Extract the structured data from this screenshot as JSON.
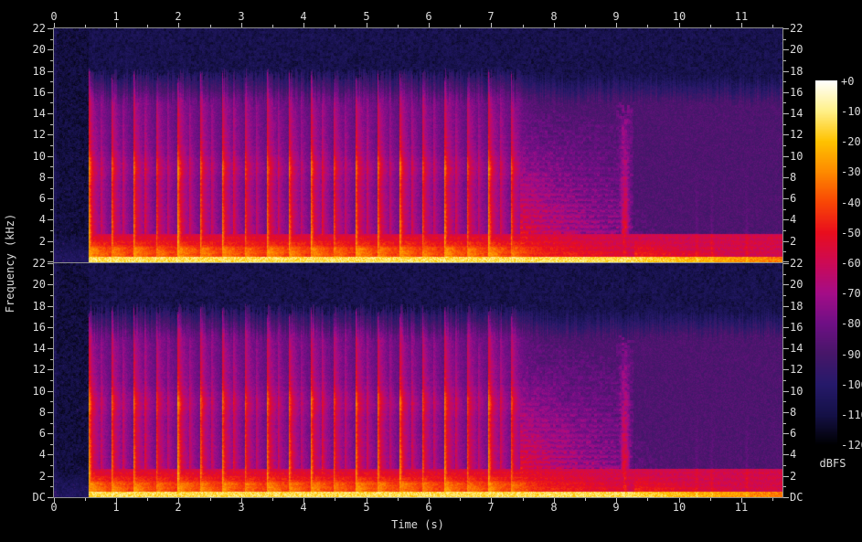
{
  "figure": {
    "xlabel": "Time (s)",
    "ylabel": "Frequency (kHz)",
    "colorbar": {
      "label": "dBFS",
      "tick_labels": [
        "+0",
        "-10",
        "-20",
        "-30",
        "-40",
        "-50",
        "-60",
        "-70",
        "-80",
        "-90",
        "-100",
        "-110",
        "-120"
      ]
    },
    "axes": {
      "time_tick_labels": [
        "0",
        "1",
        "2",
        "3",
        "4",
        "5",
        "6",
        "7",
        "8",
        "9",
        "10",
        "11"
      ],
      "freq_tick_labels": [
        "22",
        "20",
        "18",
        "16",
        "14",
        "12",
        "10",
        "8",
        "6",
        "4",
        "2"
      ],
      "dc_label": "DC"
    }
  },
  "chart_data": {
    "type": "heatmap",
    "subtype": "audio-spectrogram",
    "channels": 2,
    "x": {
      "label": "Time (s)",
      "min_s": 0,
      "max_s": 11.65,
      "major_step_s": 1,
      "minor_step_s": 0.5
    },
    "y": {
      "label": "Frequency (kHz)",
      "min_khz": 0,
      "max_khz": 22,
      "major_step_khz": 2,
      "minor_step_khz": 1
    },
    "z": {
      "label": "dBFS",
      "min_db": -120,
      "max_db": 0
    },
    "palette_stops": [
      [
        0.0,
        "#000000"
      ],
      [
        0.083,
        "#151147"
      ],
      [
        0.167,
        "#261a6b"
      ],
      [
        0.25,
        "#471769"
      ],
      [
        0.333,
        "#6f1085"
      ],
      [
        0.417,
        "#a50d88"
      ],
      [
        0.5,
        "#cd0a56"
      ],
      [
        0.583,
        "#e90e1e"
      ],
      [
        0.667,
        "#f94806"
      ],
      [
        0.75,
        "#fe8b00"
      ],
      [
        0.833,
        "#ffc200"
      ],
      [
        0.917,
        "#fff189"
      ],
      [
        1.0,
        "#ffffff"
      ]
    ],
    "content": {
      "silence_end_s": 0.55,
      "bandwidth_cutoff_khz": 16.5,
      "noise_floor_db": -104,
      "hot_band": {
        "center_khz": 8.9,
        "width_khz": 1.2,
        "boost_db": 14
      },
      "low_band": {
        "top_khz": 0.5,
        "level_db": -14
      },
      "note_onsets": [
        [
          0.56,
          1.0
        ],
        [
          0.74,
          0.55
        ],
        [
          0.92,
          0.9
        ],
        [
          1.1,
          0.5
        ],
        [
          1.27,
          0.95
        ],
        [
          1.45,
          0.6
        ],
        [
          1.63,
          0.85
        ],
        [
          1.81,
          0.5
        ],
        [
          1.98,
          1.0
        ],
        [
          2.16,
          0.55
        ],
        [
          2.34,
          0.9
        ],
        [
          2.52,
          0.5
        ],
        [
          2.69,
          0.95
        ],
        [
          2.87,
          0.6
        ],
        [
          3.05,
          0.85
        ],
        [
          3.23,
          0.5
        ],
        [
          3.4,
          1.0
        ],
        [
          3.58,
          0.55
        ],
        [
          3.76,
          0.9
        ],
        [
          3.94,
          0.5
        ],
        [
          4.11,
          0.95
        ],
        [
          4.29,
          0.6
        ],
        [
          4.47,
          0.85
        ],
        [
          4.65,
          0.5
        ],
        [
          4.82,
          1.0
        ],
        [
          5.0,
          0.55
        ],
        [
          5.18,
          0.9
        ],
        [
          5.36,
          0.5
        ],
        [
          5.53,
          0.95
        ],
        [
          5.71,
          0.6
        ],
        [
          5.89,
          0.85
        ],
        [
          6.07,
          0.5
        ],
        [
          6.24,
          1.0
        ],
        [
          6.42,
          0.55
        ],
        [
          6.6,
          0.9
        ],
        [
          6.78,
          0.5
        ],
        [
          6.95,
          0.95
        ],
        [
          7.13,
          0.6
        ],
        [
          7.31,
          0.85
        ]
      ],
      "sustain": {
        "start_s": 7.45,
        "end_s": 9.05,
        "decay_s": 1.4,
        "top_khz_start": 15,
        "top_khz_end": 13
      },
      "noise_burst": {
        "t_s": 9.13,
        "sigma_s": 0.075,
        "top_khz": 14.5
      },
      "tail": {
        "start_s": 9.28,
        "decay_s": 1.1,
        "top_khz": 12.5,
        "streaks_s": [
          10.28,
          10.52,
          11.08
        ]
      },
      "seeds": [
        1013,
        2027
      ]
    }
  }
}
